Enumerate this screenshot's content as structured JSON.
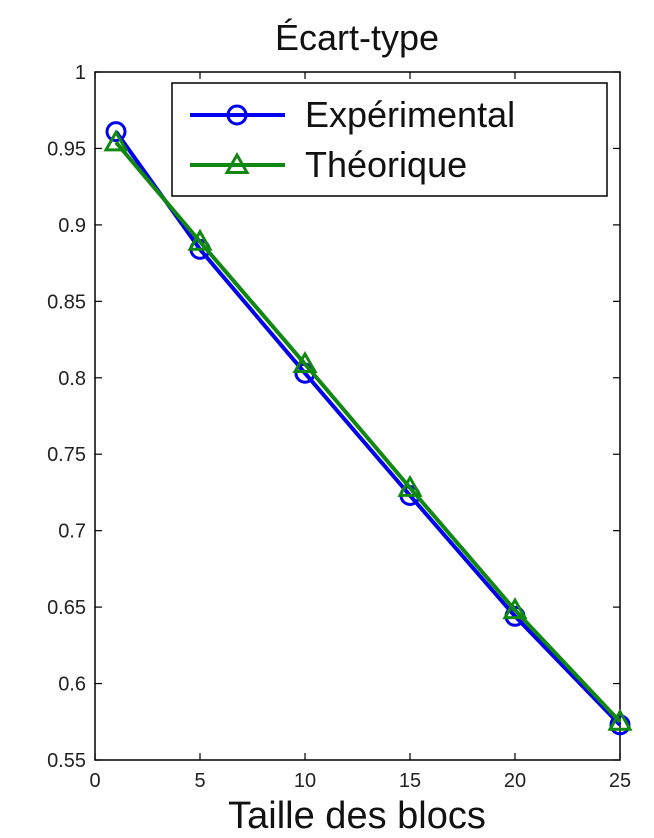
{
  "chart_data": {
    "type": "line",
    "title": "Écart-type",
    "xlabel": "Taille des blocs",
    "ylabel": "",
    "xlim": [
      0,
      25
    ],
    "ylim": [
      0.55,
      1
    ],
    "xticks": [
      0,
      5,
      10,
      15,
      20,
      25
    ],
    "yticks": [
      0.55,
      0.6,
      0.65,
      0.7,
      0.75,
      0.8,
      0.85,
      0.9,
      0.95,
      1
    ],
    "xtick_labels": [
      "0",
      "5",
      "10",
      "15",
      "20",
      "25"
    ],
    "ytick_labels": [
      "0.55",
      "0.6",
      "0.65",
      "0.7",
      "0.75",
      "0.8",
      "0.85",
      "0.9",
      "0.95",
      "1"
    ],
    "grid": false,
    "legend_position": "top-right",
    "series": [
      {
        "name": "Expérimental",
        "color": "#0000ee",
        "marker": "circle",
        "x": [
          1,
          5,
          10,
          15,
          20,
          25
        ],
        "y": [
          0.961,
          0.884,
          0.803,
          0.723,
          0.644,
          0.573
        ]
      },
      {
        "name": "Théorique",
        "color": "#118811",
        "marker": "triangle",
        "x": [
          1,
          5,
          10,
          15,
          20,
          25
        ],
        "y": [
          0.954,
          0.889,
          0.809,
          0.728,
          0.648,
          0.575
        ]
      }
    ]
  }
}
